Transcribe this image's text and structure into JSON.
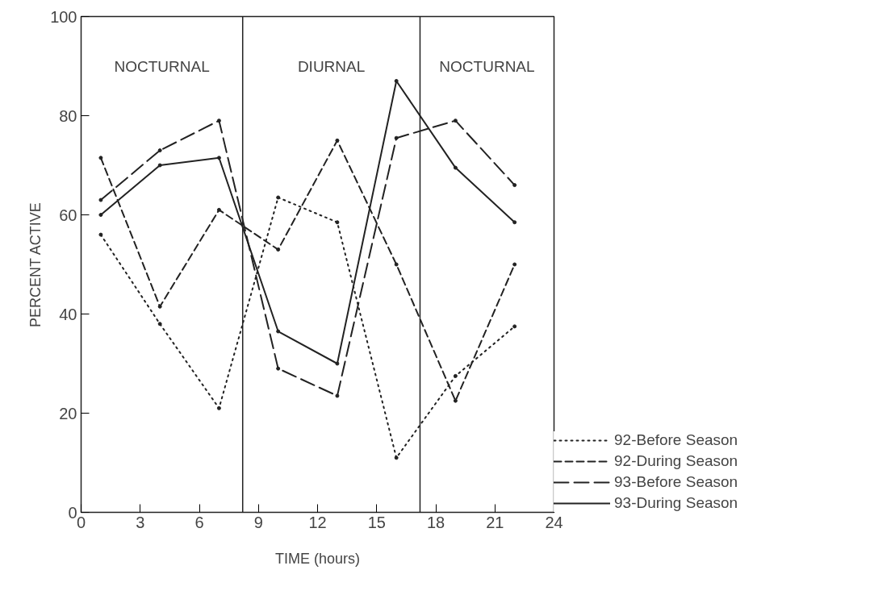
{
  "chart_data": {
    "type": "line",
    "xlabel": "TIME (hours)",
    "ylabel": "PERCENT ACTIVE",
    "x": [
      1,
      4,
      7,
      10,
      13,
      16,
      19,
      22
    ],
    "series": [
      {
        "name": "92-Before Season",
        "color": "#222222",
        "line_style": "dotted",
        "values": [
          56,
          38,
          21,
          63.5,
          58.5,
          11,
          27.5,
          37.5
        ]
      },
      {
        "name": "92-During Season",
        "color": "#222222",
        "line_style": "dashed",
        "values": [
          71.5,
          41.5,
          61,
          53,
          75,
          50,
          22.5,
          50
        ]
      },
      {
        "name": "93-Before Season",
        "color": "#222222",
        "line_style": "longdash",
        "values": [
          63,
          73,
          79,
          29,
          23.5,
          75.5,
          79,
          66
        ]
      },
      {
        "name": "93-During Season",
        "color": "#222222",
        "line_style": "solid",
        "values": [
          60,
          70,
          71.5,
          36.5,
          30,
          87,
          69.5,
          58.5
        ]
      }
    ],
    "xlim": [
      0,
      24
    ],
    "xticks": [
      0,
      3,
      6,
      9,
      12,
      15,
      18,
      21,
      24
    ],
    "ylim": [
      0,
      100
    ],
    "yticks": [
      0,
      20,
      40,
      60,
      80,
      100
    ],
    "ref_lines": [
      {
        "axis": "x",
        "value": 8.2,
        "label": null,
        "color": "#222222"
      },
      {
        "axis": "x",
        "value": 17.2,
        "label": null,
        "color": "#222222"
      }
    ],
    "annotations": [
      "NOCTURNAL",
      "DIURNAL",
      "NOCTURNAL"
    ],
    "marker": "circle",
    "grid": false,
    "legend": "bottom right"
  }
}
